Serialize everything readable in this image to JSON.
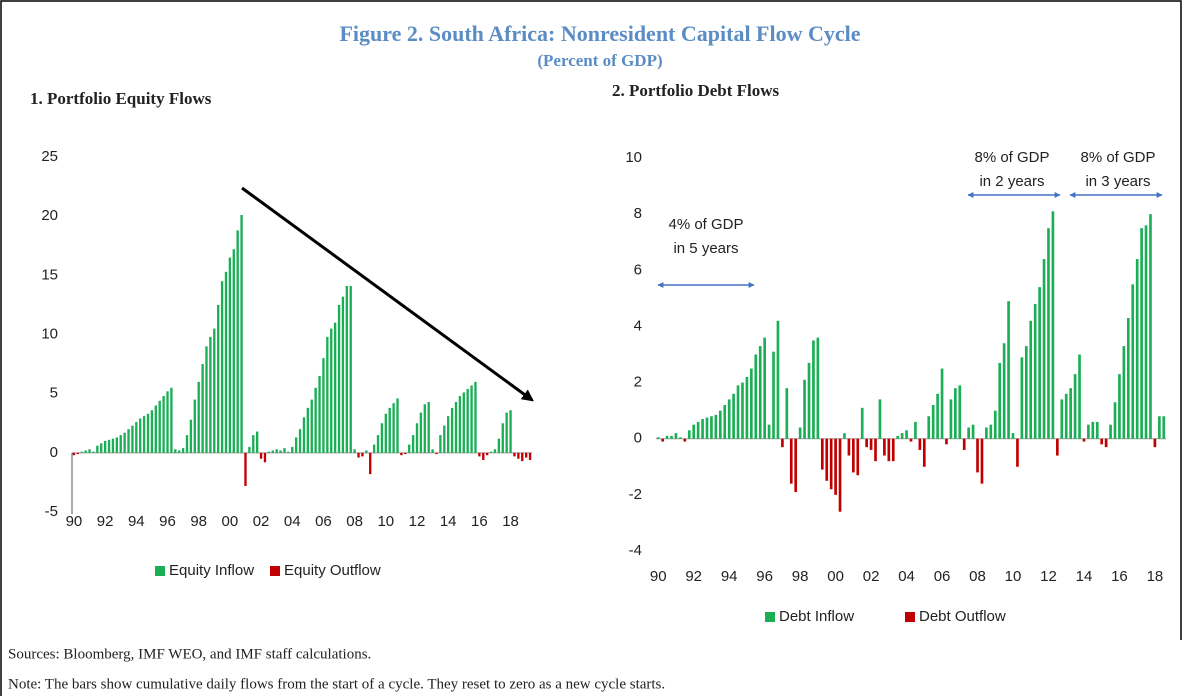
{
  "title": "Figure 2. South Africa: Nonresident Capital Flow Cycle",
  "subtitle": "(Percent of GDP)",
  "sources": "Sources: Bloomberg, IMF WEO, and IMF staff calculations.",
  "note": "Note: The bars show cumulative daily flows from the start of a cycle. They reset to zero as a new cycle starts.",
  "chart_data": [
    {
      "type": "bar",
      "title": "1. Portfolio Equity Flows",
      "categories": [
        "90",
        null,
        null,
        null,
        null,
        null,
        null,
        null,
        "92",
        null,
        null,
        null,
        null,
        null,
        null,
        null,
        "94",
        null,
        null,
        null,
        null,
        null,
        null,
        null,
        "96",
        null,
        null,
        null,
        null,
        null,
        null,
        null,
        "98",
        null,
        null,
        null,
        null,
        null,
        null,
        null,
        "00",
        null,
        null,
        null,
        null,
        null,
        null,
        null,
        "02",
        null,
        null,
        null,
        null,
        null,
        null,
        null,
        "04",
        null,
        null,
        null,
        null,
        null,
        null,
        null,
        "06",
        null,
        null,
        null,
        null,
        null,
        null,
        null,
        "08",
        null,
        null,
        null,
        null,
        null,
        null,
        null,
        "10",
        null,
        null,
        null,
        null,
        null,
        null,
        null,
        "12",
        null,
        null,
        null,
        null,
        null,
        null,
        null,
        "14",
        null,
        null,
        null,
        null,
        null,
        null,
        null,
        "16",
        null,
        null,
        null,
        null,
        null,
        null,
        null,
        "18",
        null,
        null,
        null,
        null,
        null
      ],
      "series": [
        {
          "name": "Equity Inflow",
          "color": "#1aae55",
          "values": [
            null,
            null,
            0.1,
            0.2,
            0.3,
            0.1,
            0.6,
            0.8,
            1.0,
            1.1,
            1.2,
            1.3,
            1.5,
            1.7,
            2.0,
            2.3,
            2.6,
            2.9,
            3.1,
            3.3,
            3.6,
            4.0,
            4.4,
            4.8,
            5.2,
            5.5,
            0.3,
            0.2,
            0.4,
            1.5,
            2.8,
            4.5,
            6.0,
            7.5,
            9.0,
            9.8,
            10.5,
            12.5,
            14.5,
            15.3,
            16.5,
            17.2,
            18.8,
            20.1,
            null,
            0.5,
            1.5,
            1.8,
            null,
            null,
            0.1,
            0.2,
            0.3,
            0.2,
            0.4,
            0.1,
            0.5,
            1.3,
            2.0,
            3.0,
            3.8,
            4.5,
            5.5,
            6.5,
            8.0,
            9.8,
            10.5,
            11.0,
            12.5,
            13.2,
            14.1,
            14.1,
            0.3,
            null,
            null,
            0.2,
            null,
            0.7,
            1.5,
            2.5,
            3.3,
            3.8,
            4.2,
            4.6,
            null,
            null,
            0.7,
            1.5,
            2.5,
            3.4,
            4.1,
            4.3,
            0.3,
            null,
            1.5,
            2.3,
            3.1,
            3.8,
            4.3,
            4.8,
            5.1,
            5.4,
            5.7,
            6.0,
            null,
            null,
            null,
            0.1,
            0.3,
            1.2,
            2.5,
            3.4,
            3.6,
            null,
            null,
            null,
            null,
            null
          ]
        },
        {
          "name": "Equity Outflow",
          "color": "#c00000",
          "values": [
            -0.2,
            -0.1,
            null,
            null,
            null,
            null,
            null,
            null,
            null,
            null,
            null,
            null,
            null,
            null,
            null,
            null,
            null,
            null,
            null,
            null,
            null,
            null,
            null,
            null,
            null,
            null,
            null,
            null,
            null,
            null,
            null,
            null,
            null,
            null,
            null,
            null,
            null,
            null,
            null,
            null,
            null,
            null,
            null,
            null,
            -2.8,
            null,
            null,
            null,
            -0.5,
            -0.8,
            null,
            null,
            null,
            null,
            null,
            null,
            null,
            null,
            null,
            null,
            null,
            null,
            null,
            null,
            null,
            null,
            null,
            null,
            null,
            null,
            null,
            null,
            null,
            -0.4,
            -0.3,
            null,
            -1.8,
            null,
            null,
            null,
            null,
            null,
            null,
            null,
            -0.2,
            -0.1,
            null,
            null,
            null,
            null,
            null,
            null,
            null,
            -0.1,
            null,
            null,
            null,
            null,
            null,
            null,
            null,
            null,
            null,
            null,
            -0.3,
            -0.6,
            -0.2,
            null,
            null,
            null,
            null,
            null,
            null,
            -0.3,
            -0.5,
            -0.7,
            -0.4,
            -0.6
          ]
        }
      ],
      "ylim": [
        -5,
        25
      ],
      "yticks": [
        -5,
        0,
        5,
        10,
        15,
        20,
        25
      ],
      "grid": false
    },
    {
      "type": "bar",
      "title": "2. Portfolio Debt Flows",
      "categories": [
        "90",
        null,
        null,
        null,
        null,
        null,
        null,
        null,
        "92",
        null,
        null,
        null,
        null,
        null,
        null,
        null,
        "94",
        null,
        null,
        null,
        null,
        null,
        null,
        null,
        "96",
        null,
        null,
        null,
        null,
        null,
        null,
        null,
        "98",
        null,
        null,
        null,
        null,
        null,
        null,
        null,
        "00",
        null,
        null,
        null,
        null,
        null,
        null,
        null,
        "02",
        null,
        null,
        null,
        null,
        null,
        null,
        null,
        "04",
        null,
        null,
        null,
        null,
        null,
        null,
        null,
        "06",
        null,
        null,
        null,
        null,
        null,
        null,
        null,
        "08",
        null,
        null,
        null,
        null,
        null,
        null,
        null,
        "10",
        null,
        null,
        null,
        null,
        null,
        null,
        null,
        "12",
        null,
        null,
        null,
        null,
        null,
        null,
        null,
        "14",
        null,
        null,
        null,
        null,
        null,
        null,
        null,
        "16",
        null,
        null,
        null,
        null,
        null,
        null,
        null,
        "18",
        null,
        null
      ],
      "series": [
        {
          "name": "Debt Inflow",
          "color": "#1aae55",
          "values": [
            0.05,
            null,
            0.1,
            0.1,
            0.2,
            0.05,
            null,
            0.3,
            0.5,
            0.6,
            0.7,
            0.75,
            0.8,
            0.85,
            1.0,
            1.2,
            1.4,
            1.6,
            1.9,
            2.0,
            2.2,
            2.5,
            3.0,
            3.3,
            3.6,
            0.5,
            3.1,
            4.2,
            null,
            1.8,
            null,
            null,
            0.4,
            2.1,
            2.7,
            3.5,
            3.6,
            null,
            null,
            null,
            null,
            null,
            0.2,
            null,
            null,
            null,
            1.1,
            null,
            null,
            null,
            1.4,
            null,
            null,
            null,
            0.1,
            0.2,
            0.3,
            null,
            0.6,
            null,
            null,
            0.8,
            1.2,
            1.6,
            2.5,
            null,
            1.4,
            1.8,
            1.9,
            null,
            0.4,
            0.5,
            null,
            null,
            0.4,
            0.5,
            1.0,
            2.7,
            3.4,
            4.9,
            0.2,
            null,
            2.9,
            3.3,
            4.2,
            4.8,
            5.4,
            6.4,
            7.5,
            8.1,
            null,
            1.4,
            1.6,
            1.8,
            2.3,
            3.0,
            null,
            0.5,
            0.6,
            0.6,
            null,
            null,
            0.5,
            1.3,
            2.3,
            3.3,
            4.3,
            5.5,
            6.4,
            7.5,
            7.6,
            8.0,
            null,
            0.8,
            0.8
          ]
        },
        {
          "name": "Debt Outflow",
          "color": "#c00000",
          "values": [
            null,
            -0.1,
            null,
            null,
            null,
            null,
            -0.1,
            null,
            null,
            null,
            null,
            null,
            null,
            null,
            null,
            null,
            null,
            null,
            null,
            null,
            null,
            null,
            null,
            null,
            null,
            null,
            null,
            null,
            -0.3,
            null,
            -1.6,
            -1.9,
            null,
            null,
            null,
            null,
            null,
            -1.1,
            -1.5,
            -1.8,
            -2.0,
            -2.6,
            null,
            -0.6,
            -1.2,
            -1.3,
            null,
            -0.3,
            -0.4,
            -0.8,
            null,
            -0.6,
            -0.8,
            -0.8,
            null,
            null,
            null,
            -0.1,
            null,
            -0.4,
            -1.0,
            null,
            null,
            null,
            null,
            -0.2,
            null,
            null,
            null,
            -0.4,
            null,
            null,
            -1.2,
            -1.6,
            null,
            null,
            null,
            null,
            null,
            null,
            null,
            -1.0,
            null,
            null,
            null,
            null,
            null,
            null,
            null,
            null,
            -0.6,
            null,
            null,
            null,
            null,
            null,
            -0.1,
            null,
            null,
            null,
            -0.2,
            -0.3,
            null,
            null,
            null,
            null,
            null,
            null,
            null,
            null,
            null,
            null,
            -0.3,
            null,
            null
          ]
        }
      ],
      "ylim": [
        -4,
        10
      ],
      "yticks": [
        -4,
        -2,
        0,
        2,
        4,
        6,
        8,
        10
      ],
      "grid": false,
      "annotations": [
        [
          "4% of GDP",
          "in 5 years"
        ],
        [
          "8% of GDP",
          "in 2 years"
        ],
        [
          "8% of GDP",
          "in 3 years"
        ]
      ]
    }
  ]
}
